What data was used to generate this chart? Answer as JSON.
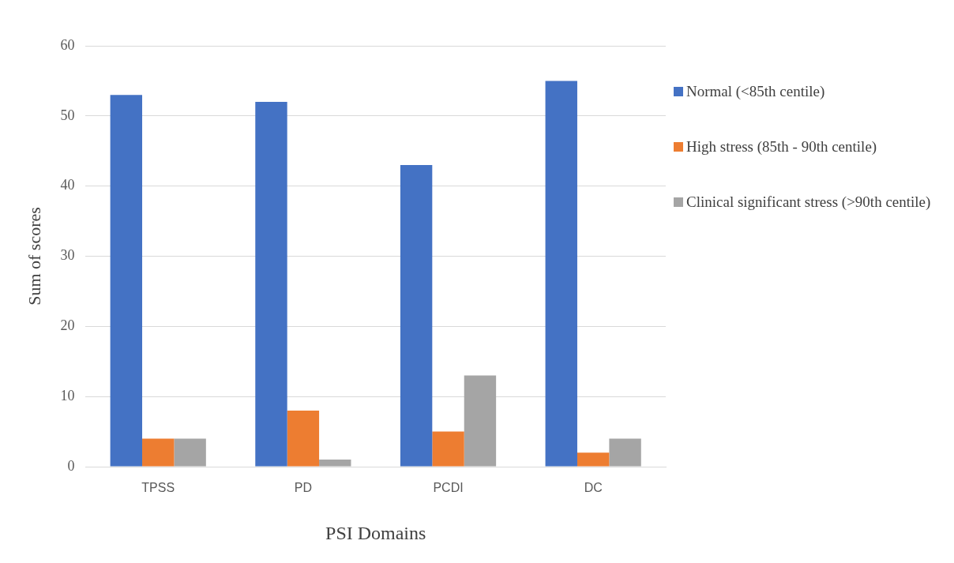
{
  "chart_data": {
    "type": "bar",
    "xlabel": "PSI Domains",
    "ylabel": "Sum of scores",
    "categories": [
      "TPSS",
      "PD",
      "PCDI",
      "DC"
    ],
    "series": [
      {
        "name": "Normal (<85th centile)",
        "color": "#4472c4",
        "values": [
          53,
          52,
          43,
          55
        ]
      },
      {
        "name": "High stress (85th - 90th centile)",
        "color": "#ed7d31",
        "values": [
          4,
          8,
          5,
          2
        ]
      },
      {
        "name": "Clinical significant stress (>90th centile)",
        "color": "#a5a5a5",
        "values": [
          4,
          1,
          13,
          4
        ]
      }
    ],
    "ylim": [
      0,
      60
    ],
    "yticks": [
      0,
      10,
      20,
      30,
      40,
      50,
      60
    ],
    "grid": "y",
    "legend": "right"
  }
}
